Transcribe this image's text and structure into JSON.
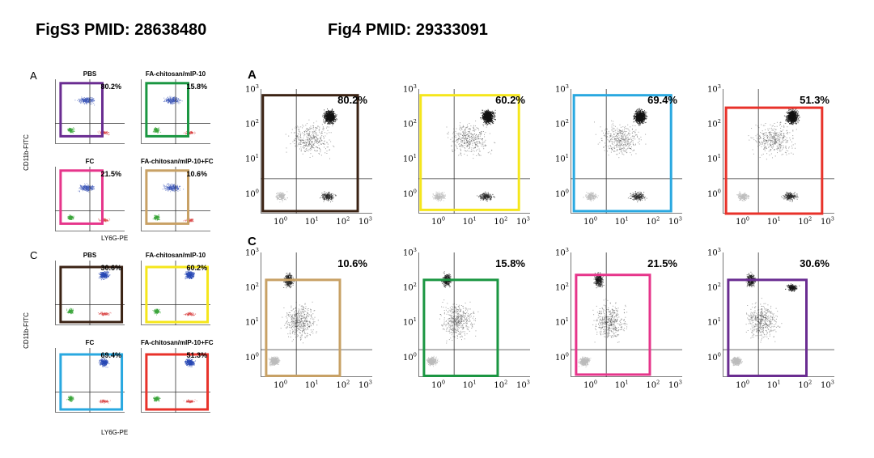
{
  "titles": {
    "left": "FigS3 PMID: 28638480",
    "right": "Fig4 PMID: 29333091"
  },
  "figS3": {
    "panel_a_label": "A",
    "panel_c_label": "C",
    "y_axis_label": "CD11b-FITC",
    "x_axis_label": "LY6G-PE",
    "panels": [
      {
        "title": "PBS",
        "pct": "80.2%",
        "frame_color": "#6a2c91",
        "row": "A",
        "col": 0
      },
      {
        "title": "FA-chitosan/mIP-10",
        "pct": "15.8%",
        "frame_color": "#1a9641",
        "row": "A",
        "col": 1
      },
      {
        "title": "FC",
        "pct": "21.5%",
        "frame_color": "#e6358b",
        "row": "A2",
        "col": 0
      },
      {
        "title": "FA-chitosan/mIP-10+FC",
        "pct": "10.6%",
        "frame_color": "#c8a165",
        "row": "A2",
        "col": 1
      },
      {
        "title": "PBS",
        "pct": "30.6%",
        "frame_color": "#3b2314",
        "row": "C",
        "col": 0
      },
      {
        "title": "FA-chitosan/mIP-10",
        "pct": "60.2%",
        "frame_color": "#f5e61b",
        "row": "C",
        "col": 1
      },
      {
        "title": "FC",
        "pct": "69.4%",
        "frame_color": "#29a8e0",
        "row": "C2",
        "col": 0
      },
      {
        "title": "FA-chitosan/mIP-10+FC",
        "pct": "51.3%",
        "frame_color": "#e8322a",
        "row": "C2",
        "col": 1
      }
    ]
  },
  "fig4": {
    "panel_a_label": "A",
    "panel_c_label": "C",
    "ticks": [
      "10",
      "0",
      "1",
      "2",
      "3"
    ],
    "row_a": [
      {
        "pct": "80.2%",
        "frame_color": "#3b2314"
      },
      {
        "pct": "60.2%",
        "frame_color": "#f5e61b"
      },
      {
        "pct": "69.4%",
        "frame_color": "#29a8e0"
      },
      {
        "pct": "51.3%",
        "frame_color": "#e8322a"
      }
    ],
    "row_c": [
      {
        "pct": "10.6%",
        "frame_color": "#c8a165"
      },
      {
        "pct": "15.8%",
        "frame_color": "#1a9641"
      },
      {
        "pct": "21.5%",
        "frame_color": "#e6358b"
      },
      {
        "pct": "30.6%",
        "frame_color": "#6a2c91"
      }
    ]
  }
}
